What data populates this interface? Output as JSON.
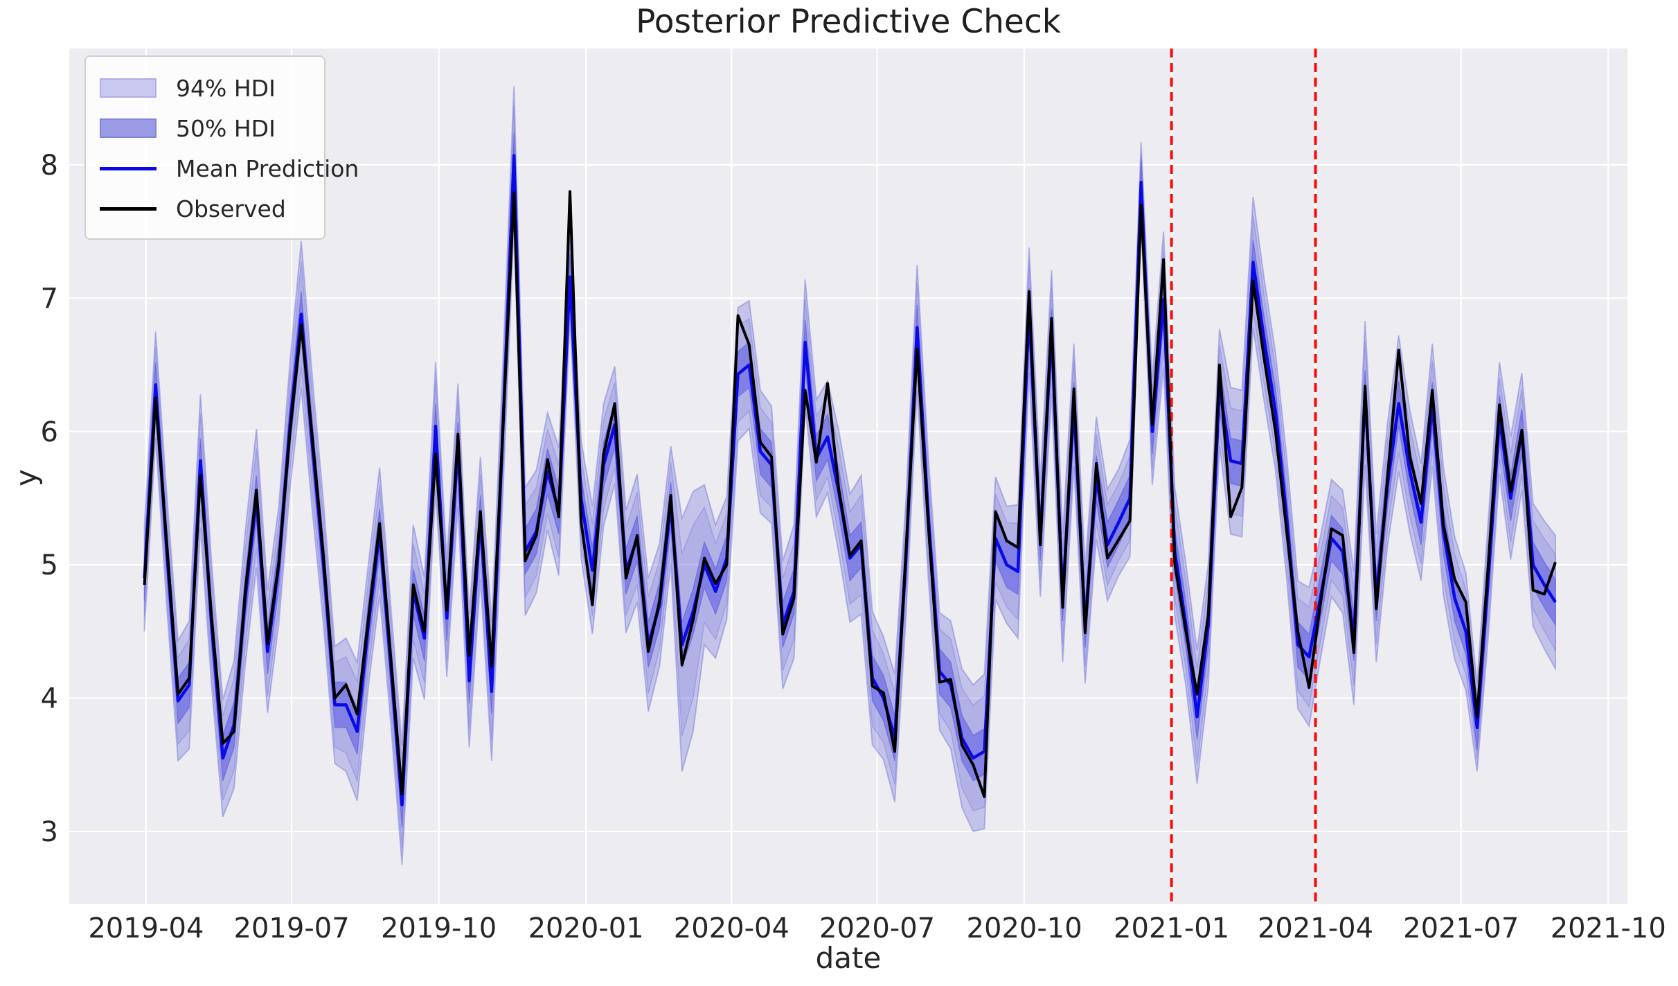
{
  "figure": {
    "title": "Posterior Predictive Check"
  },
  "axes": {
    "xlabel": "date",
    "ylabel": "y"
  },
  "legend": {
    "items": [
      {
        "id": "hdi94",
        "swatch": "band-light",
        "label": "94% HDI"
      },
      {
        "id": "hdi50",
        "swatch": "band-dark",
        "label": "50% HDI"
      },
      {
        "id": "mean",
        "swatch": "line-blue",
        "label": "Mean Prediction"
      },
      {
        "id": "observed",
        "swatch": "line-black",
        "label": "Observed"
      }
    ]
  },
  "chart_data": {
    "type": "line",
    "title": "Posterior Predictive Check",
    "xlabel": "date",
    "ylabel": "y",
    "grid": true,
    "legend_position": "upper left",
    "x_domain": [
      "2019-02-12",
      "2021-10-13"
    ],
    "ylim": [
      2.454,
      8.873
    ],
    "x_ticks": [
      {
        "label": "2019-04",
        "date": "2019-04-01"
      },
      {
        "label": "2019-07",
        "date": "2019-07-01"
      },
      {
        "label": "2019-10",
        "date": "2019-10-01"
      },
      {
        "label": "2020-01",
        "date": "2020-01-01"
      },
      {
        "label": "2020-04",
        "date": "2020-04-01"
      },
      {
        "label": "2020-07",
        "date": "2020-07-01"
      },
      {
        "label": "2020-10",
        "date": "2020-10-01"
      },
      {
        "label": "2021-01",
        "date": "2021-01-01"
      },
      {
        "label": "2021-04",
        "date": "2021-04-01"
      },
      {
        "label": "2021-07",
        "date": "2021-07-01"
      },
      {
        "label": "2021-10",
        "date": "2021-10-01"
      }
    ],
    "y_ticks": [
      {
        "label": "3",
        "value": 3
      },
      {
        "label": "4",
        "value": 4
      },
      {
        "label": "5",
        "value": 5
      },
      {
        "label": "6",
        "value": 6
      },
      {
        "label": "7",
        "value": 7
      },
      {
        "label": "8",
        "value": 8
      }
    ],
    "series_start_date": "2019-03-31",
    "series_freq_days": 7,
    "observed": [
      4.85,
      6.25,
      5.15,
      4.03,
      4.15,
      5.67,
      4.6,
      3.66,
      3.75,
      4.8,
      5.56,
      4.41,
      5.02,
      6.0,
      6.8,
      5.95,
      5.05,
      4.0,
      4.1,
      3.88,
      4.6,
      5.31,
      4.3,
      3.28,
      4.85,
      4.5,
      5.83,
      4.66,
      5.98,
      4.32,
      5.4,
      4.24,
      6.0,
      7.79,
      5.03,
      5.22,
      5.79,
      5.36,
      7.8,
      5.32,
      4.7,
      5.83,
      6.21,
      4.9,
      5.22,
      4.35,
      4.73,
      5.52,
      4.25,
      4.59,
      5.05,
      4.86,
      5.0,
      6.87,
      6.65,
      5.92,
      5.81,
      4.48,
      4.75,
      6.31,
      5.77,
      6.36,
      5.57,
      5.07,
      5.18,
      4.09,
      4.04,
      3.6,
      5.1,
      6.62,
      5.3,
      4.12,
      4.14,
      3.65,
      3.5,
      3.26,
      5.4,
      5.18,
      5.13,
      7.05,
      5.15,
      6.85,
      4.68,
      6.32,
      4.49,
      5.76,
      5.05,
      5.19,
      5.33,
      7.7,
      6.05,
      7.29,
      5.01,
      4.5,
      4.03,
      4.62,
      6.5,
      5.36,
      5.58,
      7.13,
      6.54,
      6.0,
      5.25,
      4.5,
      4.08,
      4.7,
      5.27,
      5.22,
      4.34,
      6.34,
      4.67,
      5.65,
      6.61,
      5.81,
      5.46,
      6.31,
      5.3,
      4.89,
      4.72,
      3.86,
      5.0,
      6.2,
      5.55,
      6.01,
      4.81,
      4.78,
      5.02
    ],
    "mean_prediction": [
      4.9,
      6.35,
      5.1,
      3.98,
      4.1,
      5.78,
      4.55,
      3.55,
      3.8,
      4.75,
      5.5,
      4.35,
      5.0,
      6.05,
      6.88,
      5.9,
      5.0,
      3.95,
      3.95,
      3.75,
      4.55,
      5.25,
      4.25,
      3.2,
      4.8,
      4.45,
      6.04,
      4.6,
      5.9,
      4.13,
      5.35,
      4.05,
      6.0,
      8.07,
      5.1,
      5.25,
      5.7,
      5.4,
      7.16,
      5.49,
      4.96,
      5.75,
      6.05,
      4.95,
      5.2,
      4.4,
      4.7,
      5.45,
      4.4,
      4.65,
      5.0,
      4.8,
      5.05,
      6.43,
      6.5,
      5.85,
      5.75,
      4.55,
      4.8,
      6.67,
      5.8,
      5.96,
      5.55,
      5.05,
      5.15,
      4.15,
      4.0,
      3.7,
      5.05,
      6.78,
      5.35,
      4.2,
      4.1,
      3.7,
      3.55,
      3.6,
      5.2,
      5.0,
      4.95,
      6.91,
      5.2,
      6.75,
      4.75,
      6.2,
      4.55,
      5.65,
      5.15,
      5.32,
      5.5,
      7.87,
      6.0,
      6.99,
      5.1,
      4.55,
      3.86,
      4.55,
      6.33,
      5.78,
      5.76,
      7.27,
      6.68,
      6.15,
      5.35,
      4.4,
      4.31,
      4.75,
      5.2,
      5.1,
      4.45,
      6.29,
      4.75,
      5.6,
      6.21,
      5.7,
      5.32,
      6.2,
      5.25,
      4.75,
      4.5,
      3.78,
      4.9,
      6.1,
      5.5,
      6.0,
      5.0,
      4.85,
      4.72
    ],
    "hdi94_halfwidth": [
      0.4,
      0.4,
      0.42,
      0.45,
      0.48,
      0.5,
      0.46,
      0.44,
      0.48,
      0.5,
      0.52,
      0.46,
      0.44,
      0.48,
      0.55,
      0.5,
      0.46,
      0.44,
      0.5,
      0.52,
      0.46,
      0.48,
      0.44,
      0.45,
      0.5,
      0.46,
      0.48,
      0.44,
      0.46,
      0.5,
      0.46,
      0.52,
      0.5,
      0.52,
      0.48,
      0.46,
      0.44,
      0.48,
      0.3,
      0.44,
      0.48,
      0.46,
      0.44,
      0.46,
      0.48,
      0.5,
      0.46,
      0.44,
      0.95,
      0.9,
      0.6,
      0.5,
      0.46,
      0.5,
      0.48,
      0.46,
      0.44,
      0.48,
      0.5,
      0.47,
      0.44,
      0.42,
      0.46,
      0.48,
      0.52,
      0.5,
      0.46,
      0.48,
      0.44,
      0.47,
      0.46,
      0.44,
      0.48,
      0.52,
      0.55,
      0.58,
      0.46,
      0.44,
      0.5,
      0.47,
      0.44,
      0.46,
      0.48,
      0.46,
      0.44,
      0.46,
      0.42,
      0.4,
      0.44,
      0.3,
      0.4,
      0.51,
      0.48,
      0.46,
      0.5,
      0.46,
      0.44,
      0.55,
      0.55,
      0.49,
      0.46,
      0.44,
      0.46,
      0.48,
      0.52,
      0.46,
      0.44,
      0.46,
      0.5,
      0.54,
      0.48,
      0.46,
      0.51,
      0.46,
      0.44,
      0.46,
      0.48,
      0.46,
      0.44,
      0.33,
      0.44,
      0.42,
      0.46,
      0.44,
      0.46,
      0.48,
      0.5
    ],
    "hdi50_halfwidth": 0.17,
    "event_lines": [
      {
        "date": "2021-01-01",
        "style": "dashed"
      },
      {
        "date": "2021-04-01",
        "style": "dashed"
      }
    ],
    "colors": {
      "axes_background": "#ededf1",
      "grid": "#ffffff",
      "hdi94_band": "#c7c7f0",
      "hdi50_band": "#9b9be6",
      "mean_line": "#0a0ae6",
      "observed_line": "#000000",
      "event_line": "#ff0a0a",
      "text": "#262626"
    }
  }
}
